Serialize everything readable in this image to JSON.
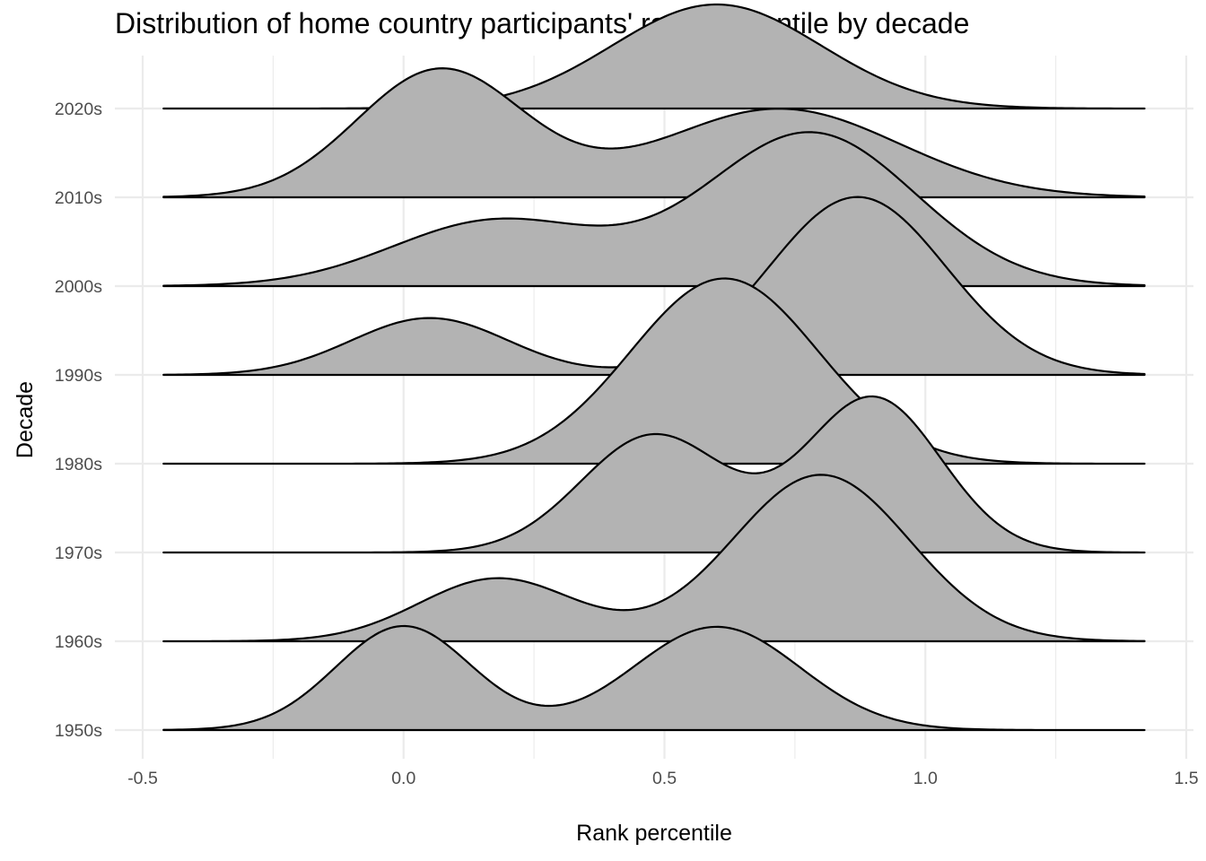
{
  "chart_data": {
    "type": "area",
    "subtype": "ridgeline",
    "title": "Distribution of home country participants' rank percentile by decade",
    "xlabel": "Rank percentile",
    "ylabel": "Decade",
    "xlim": [
      -0.5,
      1.5
    ],
    "x_ticks": [
      "-0.5",
      "0.0",
      "0.5",
      "1.0",
      "1.5"
    ],
    "x_tick_values": [
      -0.5,
      0.0,
      0.5,
      1.0,
      1.5
    ],
    "density_range": [
      -0.46,
      1.42
    ],
    "categories": [
      "1950s",
      "1960s",
      "1970s",
      "1980s",
      "1990s",
      "2000s",
      "2010s",
      "2020s"
    ],
    "fill_color": "#b3b3b3",
    "line_color": "#000000",
    "grid_color": "#ebebeb",
    "grid": true,
    "legend": "none",
    "series": [
      {
        "name": "1950s",
        "peak_height": 1.0,
        "components": [
          {
            "weight": 0.45,
            "mean": 0.0,
            "sd": 0.13
          },
          {
            "weight": 0.55,
            "mean": 0.6,
            "sd": 0.16
          }
        ]
      },
      {
        "name": "1960s",
        "peak_height": 1.6,
        "components": [
          {
            "weight": 0.25,
            "mean": 0.18,
            "sd": 0.15
          },
          {
            "weight": 0.75,
            "mean": 0.8,
            "sd": 0.17
          }
        ]
      },
      {
        "name": "1970s",
        "peak_height": 1.5,
        "components": [
          {
            "weight": 0.45,
            "mean": 0.48,
            "sd": 0.14
          },
          {
            "weight": 0.55,
            "mean": 0.9,
            "sd": 0.13
          }
        ]
      },
      {
        "name": "1980s",
        "peak_height": 1.78,
        "components": [
          {
            "weight": 1.0,
            "mean": 0.615,
            "sd": 0.18
          }
        ]
      },
      {
        "name": "1990s",
        "peak_height": 1.71,
        "components": [
          {
            "weight": 0.22,
            "mean": 0.05,
            "sd": 0.15
          },
          {
            "weight": 0.78,
            "mean": 0.87,
            "sd": 0.17
          }
        ]
      },
      {
        "name": "2000s",
        "peak_height": 1.48,
        "components": [
          {
            "weight": 0.3,
            "mean": 0.18,
            "sd": 0.2
          },
          {
            "weight": 0.7,
            "mean": 0.78,
            "sd": 0.2
          }
        ]
      },
      {
        "name": "2010s",
        "peak_height": 1.24,
        "components": [
          {
            "weight": 0.5,
            "mean": 0.07,
            "sd": 0.16
          },
          {
            "weight": 0.5,
            "mean": 0.72,
            "sd": 0.23
          }
        ]
      },
      {
        "name": "2020s",
        "peak_height": 1.0,
        "components": [
          {
            "weight": 1.0,
            "mean": 0.6,
            "sd": 0.2
          }
        ]
      }
    ]
  }
}
